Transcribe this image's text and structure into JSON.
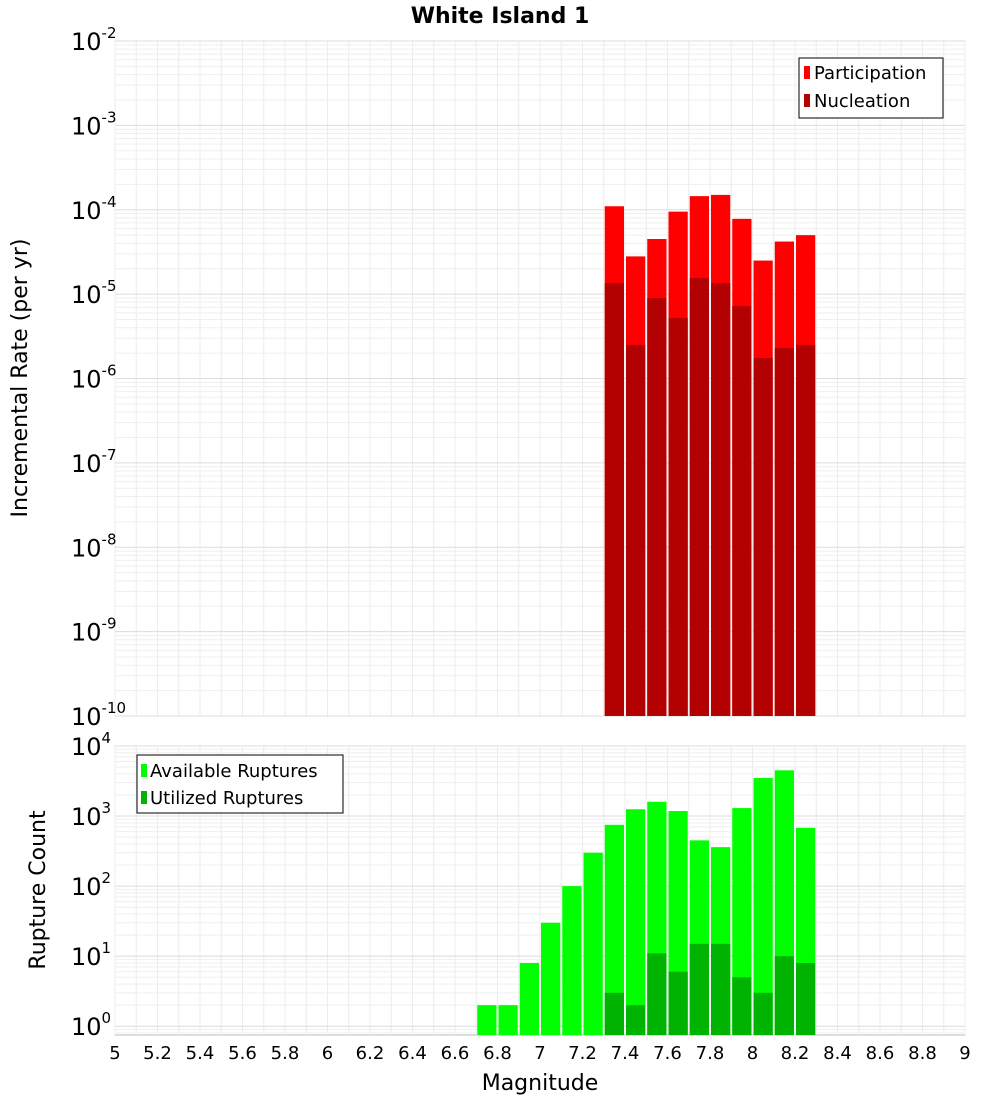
{
  "chart_data": [
    {
      "type": "bar",
      "title": "White Island 1",
      "ylabel": "Incremental Rate (per yr)",
      "xlabel": "",
      "xlim": [
        5,
        9
      ],
      "ylim": [
        1e-10,
        0.01
      ],
      "yscale": "log",
      "grid": true,
      "legend_position": "top-right",
      "bar_width": 0.1,
      "x": [
        7.35,
        7.45,
        7.55,
        7.65,
        7.75,
        7.85,
        7.95,
        8.05,
        8.15,
        8.25
      ],
      "series": [
        {
          "name": "Participation",
          "color": "#ff0000",
          "values": [
            0.00011,
            2.8e-05,
            4.5e-05,
            9.5e-05,
            0.000145,
            0.00015,
            7.8e-05,
            2.5e-05,
            4.2e-05,
            5e-05
          ]
        },
        {
          "name": "Nucleation",
          "color": "#b30000",
          "values": [
            1.35e-05,
            2.5e-06,
            9e-06,
            5.2e-06,
            1.55e-05,
            1.35e-05,
            7.2e-06,
            1.75e-06,
            2.3e-06,
            2.5e-06
          ]
        }
      ],
      "y_ticks": [
        {
          "base": "10",
          "exp": "-2"
        },
        {
          "base": "10",
          "exp": "-3"
        },
        {
          "base": "10",
          "exp": "-4"
        },
        {
          "base": "10",
          "exp": "-5"
        },
        {
          "base": "10",
          "exp": "-6"
        },
        {
          "base": "10",
          "exp": "-7"
        },
        {
          "base": "10",
          "exp": "-8"
        },
        {
          "base": "10",
          "exp": "-9"
        },
        {
          "base": "10",
          "exp": "-10"
        }
      ]
    },
    {
      "type": "bar",
      "title": "",
      "ylabel": "Rupture Count",
      "xlabel": "Magnitude",
      "xlim": [
        5,
        9
      ],
      "ylim": [
        0.75,
        10000.0
      ],
      "yscale": "log",
      "grid": true,
      "legend_position": "top-left",
      "bar_width": 0.1,
      "x": [
        6.75,
        6.85,
        6.95,
        7.05,
        7.15,
        7.25,
        7.35,
        7.45,
        7.55,
        7.65,
        7.75,
        7.85,
        7.95,
        8.05,
        8.15,
        8.25
      ],
      "series": [
        {
          "name": "Available Ruptures",
          "color": "#00ff00",
          "values": [
            2,
            2,
            8,
            30,
            100,
            300,
            750,
            1250,
            1600,
            1180,
            450,
            360,
            1300,
            3500,
            4500,
            680
          ]
        },
        {
          "name": "Utilized Ruptures",
          "color": "#00b300",
          "values": [
            0,
            0,
            0,
            0,
            0,
            0,
            3,
            2,
            11,
            6,
            15,
            15,
            5,
            3,
            10,
            8
          ]
        }
      ],
      "y_ticks": [
        {
          "base": "10",
          "exp": "4"
        },
        {
          "base": "10",
          "exp": "3"
        },
        {
          "base": "10",
          "exp": "2"
        },
        {
          "base": "10",
          "exp": "1"
        },
        {
          "base": "10",
          "exp": "0"
        }
      ],
      "x_ticks": [
        "5",
        "5.2",
        "5.4",
        "5.6",
        "5.8",
        "6",
        "6.2",
        "6.4",
        "6.6",
        "6.8",
        "7",
        "7.2",
        "7.4",
        "7.6",
        "7.8",
        "8",
        "8.2",
        "8.4",
        "8.6",
        "8.8",
        "9"
      ]
    }
  ]
}
